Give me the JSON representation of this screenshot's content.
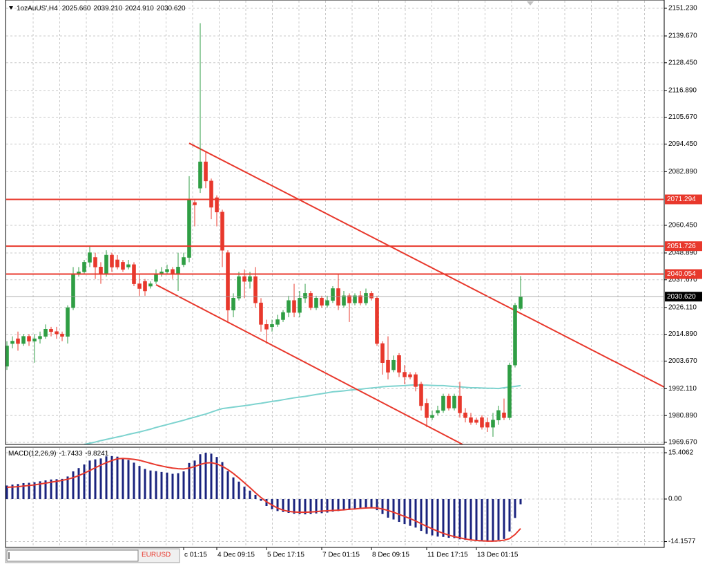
{
  "chart_data": [
    {
      "type": "candlestick",
      "title": "1ozAuUS',H4",
      "header_labels": [
        "2025.660",
        "2039.210",
        "2024.910",
        "2030.620"
      ],
      "categories": [
        null,
        null,
        null,
        null,
        null,
        null,
        null,
        null,
        null,
        null,
        null,
        null,
        null,
        null,
        null,
        null,
        null,
        null,
        null,
        null,
        null,
        null,
        null,
        null,
        null,
        null,
        null,
        null,
        null,
        null,
        null,
        null,
        "c 01:15",
        null,
        null,
        null,
        null,
        null,
        "4 Dec 09:15",
        null,
        null,
        null,
        null,
        null,
        null,
        null,
        null,
        "5 Dec 17:15",
        null,
        null,
        null,
        null,
        null,
        null,
        null,
        null,
        null,
        "7 Dec 01:15",
        null,
        null,
        null,
        null,
        null,
        null,
        null,
        null,
        "8 Dec 09:15",
        null,
        null,
        null,
        null,
        null,
        null,
        null,
        null,
        null,
        "11 Dec 17:15",
        null,
        null,
        null,
        null,
        null,
        null,
        null,
        null,
        "13 Dec 01:15",
        null,
        null,
        null,
        null,
        null,
        null,
        null,
        null
      ],
      "open": [
        2001.5,
        2011,
        2013,
        2011,
        2014,
        2012,
        2013,
        2014,
        2017,
        2016,
        2015,
        2014,
        2026,
        2040,
        2041,
        2045,
        2047,
        2043,
        2040,
        2048,
        2046,
        2045,
        2043,
        2044,
        2036,
        2037,
        2035,
        2037,
        2040,
        2041,
        2042,
        2040,
        2044,
        2047,
        2070,
        2076,
        2087,
        2079,
        2072,
        2066,
        2049,
        2025,
        2030,
        2039,
        2037,
        2039,
        2028,
        2019,
        2018,
        2019,
        2021,
        2024,
        2029,
        2024,
        2030,
        2032,
        2026,
        2030,
        2027,
        2029,
        2034,
        2027,
        2031,
        2028,
        2031,
        2028,
        2032,
        2030,
        2011,
        2004,
        2000,
        2006,
        1999,
        1998,
        1998,
        1994,
        1986,
        1980,
        1982,
        1983,
        1989,
        1984,
        1989,
        1982,
        1980,
        1979,
        1980,
        1978,
        1976,
        1979,
        1982,
        1980,
        2002,
        2025.66
      ],
      "high": [
        2012,
        2014,
        2016,
        2015,
        2015,
        2015,
        2016,
        2019,
        2018,
        2018,
        2016,
        2027,
        2043,
        2043,
        2046,
        2052,
        2049,
        2045,
        2050,
        2049,
        2048,
        2046,
        2046,
        2045,
        2040,
        2038,
        2037,
        2042,
        2043,
        2044,
        2043,
        2049,
        2049,
        2081,
        2071,
        2145,
        2091,
        2080,
        2073,
        2067,
        2050,
        2032,
        2041,
        2042,
        2041,
        2043,
        2030,
        2021,
        2021,
        2023,
        2025,
        2031,
        2036,
        2033,
        2036,
        2033,
        2031,
        2031,
        2031,
        2035,
        2040,
        2033,
        2032,
        2032,
        2033,
        2034,
        2033,
        2031,
        2012,
        2014,
        2006,
        2007,
        2002,
        1999,
        1999,
        1995,
        1988,
        1983,
        1985,
        1990,
        1990,
        1990,
        1995,
        1984,
        1982,
        1980,
        1981,
        1980,
        1982,
        1985,
        1988,
        2003,
        2028,
        2039.21
      ],
      "low": [
        2000,
        2009,
        2008,
        2010,
        2010,
        2003,
        2011,
        2013,
        2014,
        2013,
        2012,
        2011,
        2025,
        2039,
        2040,
        2043,
        2038,
        2036,
        2039,
        2041,
        2042,
        2041,
        2042,
        2035,
        2031,
        2031,
        2034,
        2036,
        2039,
        2040,
        2038,
        2033,
        2043,
        2045,
        2060,
        2074,
        2076,
        2063,
        2060,
        2043,
        2020,
        2022,
        2029,
        2030,
        2034,
        2026,
        2016,
        2011,
        2016,
        2018,
        2020,
        2022,
        2022,
        2022,
        2028,
        2025,
        2025,
        2026,
        2026,
        2028,
        2025,
        2026,
        2020,
        2027,
        2027,
        2027,
        2029,
        2010,
        1998,
        1996,
        1999,
        1997,
        1994,
        1996,
        1991,
        1983,
        1976,
        1979,
        1981,
        1982,
        1983,
        1983,
        1980,
        1978,
        1977,
        1977,
        1975,
        1974,
        1972,
        1977,
        1979,
        1979,
        2001,
        2024.91
      ],
      "close": [
        2010,
        2012,
        2011,
        2014,
        2012,
        2013,
        2014,
        2017,
        2016,
        2015,
        2014,
        2026,
        2040,
        2041,
        2045,
        2049,
        2043,
        2040,
        2048,
        2043,
        2043,
        2042,
        2044,
        2036,
        2034,
        2033,
        2036,
        2040,
        2041,
        2042,
        2040,
        2043,
        2047,
        2071,
        2069,
        2087,
        2079,
        2068,
        2066,
        2050,
        2025,
        2030,
        2039,
        2037,
        2039,
        2028,
        2019,
        2017,
        2019,
        2021,
        2024,
        2029,
        2024,
        2030,
        2032,
        2026,
        2030,
        2027,
        2029,
        2034,
        2027,
        2031,
        2028,
        2031,
        2028,
        2032,
        2030,
        2011,
        2003,
        1999,
        2004,
        1999,
        1997,
        1997,
        1993,
        1985,
        1980,
        1981,
        1983,
        1989,
        1984,
        1989,
        1982,
        1980,
        1978,
        1978,
        1976,
        1976,
        1979,
        1983,
        1980,
        2002,
        2027,
        2030.62
      ],
      "up_color": "#2f9e44",
      "down_color": "#e8382c",
      "ylim": [
        1968.8,
        2154.7
      ],
      "yticks": [
        {
          "value": 2151.23,
          "label": "2151.230"
        },
        {
          "value": 2139.67,
          "label": "2139.670"
        },
        {
          "value": 2128.45,
          "label": "2128.450"
        },
        {
          "value": 2116.89,
          "label": "2116.890"
        },
        {
          "value": 2105.67,
          "label": "2105.670"
        },
        {
          "value": 2094.45,
          "label": "2094.450"
        },
        {
          "value": 2082.89,
          "label": "2082.890"
        },
        {
          "value": 2060.45,
          "label": "2060.450"
        },
        {
          "value": 2048.89,
          "label": "2048.890"
        },
        {
          "value": 2037.67,
          "label": "2037.670"
        },
        {
          "value": 2026.11,
          "label": "2026.110"
        },
        {
          "value": 2014.89,
          "label": "2014.890"
        },
        {
          "value": 2003.67,
          "label": "2003.670"
        },
        {
          "value": 1992.11,
          "label": "1992.110"
        },
        {
          "value": 1980.89,
          "label": "1980.890"
        },
        {
          "value": 1969.67,
          "label": "1969.670"
        }
      ],
      "grid": true,
      "hlines": [
        {
          "value": 2071.294,
          "label": "2071.294"
        },
        {
          "value": 2051.726,
          "label": "2051.726"
        },
        {
          "value": 2040.054,
          "label": "2040.054"
        }
      ],
      "hline_color": "#e8382c",
      "trendlines": [
        {
          "x": [
            33,
            119
          ],
          "y": [
            2094.8,
            1992.8
          ]
        },
        {
          "x": [
            27,
            82.5
          ],
          "y": [
            2035.6,
            1968.8
          ]
        }
      ],
      "ma": {
        "color": "#7dd3cf",
        "values": [
          null,
          null,
          null,
          null,
          null,
          null,
          null,
          null,
          null,
          null,
          null,
          null,
          null,
          null,
          1968.8,
          1969.3,
          1969.8,
          1970.4,
          1970.9,
          1971.4,
          1971.9,
          1972.4,
          1973.0,
          1973.5,
          1974.0,
          1974.6,
          1975.2,
          1975.9,
          1976.5,
          1977.1,
          1977.7,
          1978.3,
          1978.9,
          1979.6,
          1980.2,
          1980.9,
          1981.5,
          1982.3,
          1983.1,
          1983.8,
          1984.1,
          1984.4,
          1984.7,
          1985.0,
          1985.3,
          1985.7,
          1986.0,
          1986.4,
          1986.8,
          1987.1,
          1987.5,
          1987.9,
          1988.3,
          1988.6,
          1988.9,
          1989.3,
          1989.7,
          1990.0,
          1990.4,
          1990.8,
          1991.0,
          1991.2,
          1991.5,
          1991.7,
          1991.9,
          1992.2,
          1992.4,
          1992.6,
          1992.9,
          1993.1,
          1993.2,
          1993.3,
          1993.4,
          1993.6,
          1993.7,
          1993.6,
          1993.6,
          1993.5,
          1993.4,
          1993.4,
          1993.2,
          1993.0,
          1992.9,
          1992.7,
          1992.5,
          1992.5,
          1992.4,
          1992.3,
          1992.3,
          1992.2,
          1992.5,
          1992.8,
          1993.1,
          1993.4
        ]
      }
    },
    {
      "type": "macd",
      "title": "MACD(12,26,9)",
      "histogram": {
        "color": "#1a237e",
        "values": [
          4.5,
          4.8,
          5.0,
          5.3,
          5.4,
          5.6,
          5.9,
          6.2,
          6.5,
          6.6,
          6.7,
          7.5,
          9.2,
          10.3,
          11.5,
          12.8,
          13.2,
          13.5,
          14.2,
          14.3,
          14.1,
          13.6,
          13.0,
          12.1,
          11.0,
          10.0,
          9.5,
          9.3,
          9.0,
          8.8,
          8.4,
          8.6,
          9.2,
          12.0,
          12.8,
          14.9,
          15.4,
          15.1,
          14.0,
          12.3,
          9.3,
          7.2,
          5.8,
          4.1,
          2.8,
          1.4,
          -0.6,
          -2.3,
          -3.4,
          -4.0,
          -4.3,
          -4.6,
          -4.9,
          -5.0,
          -5.1,
          -5.0,
          -4.8,
          -4.7,
          -4.5,
          -4.2,
          -4.0,
          -3.8,
          -3.6,
          -3.4,
          -3.2,
          -3.0,
          -2.9,
          -3.7,
          -5.0,
          -6.2,
          -6.8,
          -7.6,
          -8.3,
          -8.9,
          -9.5,
          -10.6,
          -11.6,
          -12.1,
          -12.5,
          -12.6,
          -12.9,
          -13.0,
          -13.4,
          -13.6,
          -13.8,
          -13.9,
          -14.1,
          -14.1,
          -13.9,
          -13.6,
          -13.3,
          -10.8,
          -6.3,
          -1.7433
        ]
      },
      "signal": {
        "color": "#e8382c",
        "values": [
          3.9,
          4.0,
          4.1,
          4.3,
          4.5,
          4.7,
          5.0,
          5.3,
          5.6,
          5.9,
          6.2,
          6.6,
          7.1,
          7.8,
          8.6,
          9.5,
          10.4,
          11.3,
          12.1,
          12.8,
          13.4,
          13.5,
          13.4,
          13.2,
          12.9,
          12.4,
          11.9,
          11.4,
          11.0,
          10.6,
          10.3,
          10.1,
          10.0,
          10.3,
          10.8,
          11.5,
          12.0,
          12.1,
          11.7,
          10.9,
          9.8,
          8.5,
          7.0,
          5.4,
          3.8,
          2.1,
          0.5,
          -0.9,
          -2.0,
          -3.0,
          -3.7,
          -4.1,
          -4.3,
          -4.4,
          -4.4,
          -4.3,
          -4.2,
          -4.0,
          -3.9,
          -3.8,
          -3.7,
          -3.6,
          -3.4,
          -3.3,
          -3.1,
          -3.0,
          -2.9,
          -3.0,
          -3.3,
          -3.8,
          -4.4,
          -5.1,
          -5.8,
          -6.5,
          -7.3,
          -8.2,
          -9.1,
          -9.9,
          -10.7,
          -11.4,
          -12.0,
          -12.5,
          -12.9,
          -13.3,
          -13.6,
          -13.8,
          -13.9,
          -14.0,
          -14.0,
          -13.9,
          -13.7,
          -13.2,
          -11.8,
          -9.8241
        ]
      },
      "ylim": [
        -16.1,
        17.25
      ],
      "yticks": [
        15.4062,
        {
          "value": 0,
          "label": "0.00"
        },
        -14.1577
      ]
    }
  ],
  "footer": {
    "tab": "EURUSD"
  }
}
